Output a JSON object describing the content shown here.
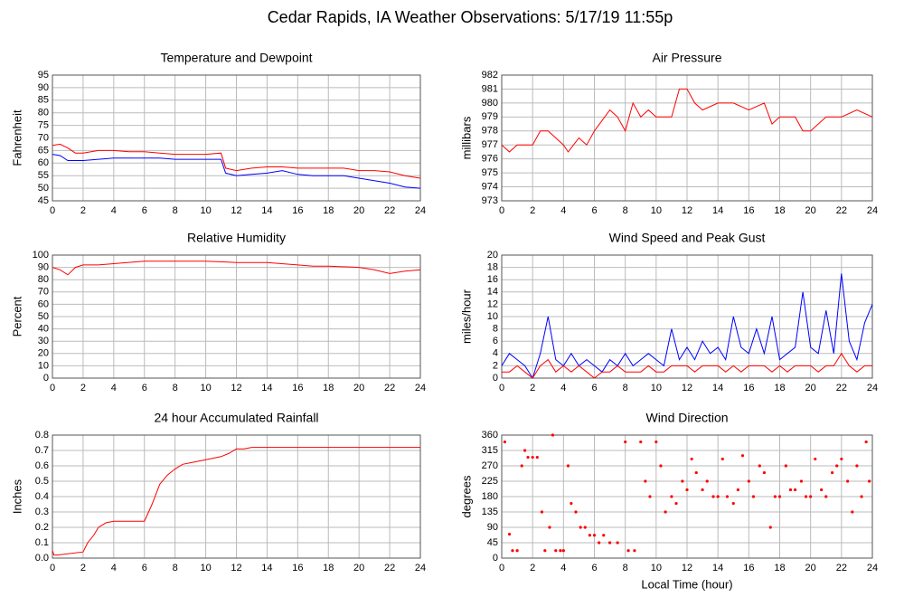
{
  "title": "Cedar Rapids, IA Weather Observations: 5/17/19 11:55p",
  "chart_data": [
    {
      "type": "line",
      "title": "Temperature and Dewpoint",
      "ylabel": "Fahrenheit",
      "x": [
        0,
        0.5,
        1,
        1.5,
        2,
        3,
        4,
        5,
        6,
        7,
        8,
        9,
        10,
        11,
        11.3,
        12,
        13,
        14,
        15,
        16,
        17,
        18,
        19,
        20,
        21,
        22,
        23,
        24
      ],
      "series": [
        {
          "color": "#ff0000",
          "values": [
            67,
            67.5,
            66,
            64,
            64,
            65,
            65,
            64.5,
            64.5,
            64,
            63.5,
            63.5,
            63.5,
            64,
            58,
            57,
            58,
            58.5,
            58.5,
            58,
            58,
            58,
            58,
            57,
            57,
            56.5,
            55,
            54
          ]
        },
        {
          "color": "#0000ff",
          "values": [
            63.5,
            63,
            61,
            61,
            61,
            61.5,
            62,
            62,
            62,
            62,
            61.5,
            61.5,
            61.5,
            61.5,
            56,
            55,
            55.5,
            56,
            57,
            55.5,
            55,
            55,
            55,
            54,
            53,
            52,
            50.5,
            50
          ]
        }
      ],
      "xlim": [
        0,
        24
      ],
      "xticks": [
        0,
        2,
        4,
        6,
        8,
        10,
        12,
        14,
        16,
        18,
        20,
        22,
        24
      ],
      "ylim": [
        45,
        95
      ],
      "yticks": [
        45,
        50,
        55,
        60,
        65,
        70,
        75,
        80,
        85,
        90,
        95
      ],
      "grid": true
    },
    {
      "type": "line",
      "title": "Air Pressure",
      "ylabel": "millibars",
      "x": [
        0,
        0.5,
        1,
        2,
        2.5,
        3,
        4,
        4.3,
        5,
        5.5,
        6,
        7,
        7.5,
        8,
        8.5,
        9,
        9.5,
        10,
        11,
        11.5,
        12,
        12.5,
        13,
        14,
        15,
        16,
        17,
        17.5,
        18,
        19,
        19.5,
        20,
        21,
        22,
        23,
        24
      ],
      "series": [
        {
          "color": "#ff0000",
          "values": [
            977,
            976.5,
            977,
            977,
            978,
            978,
            977,
            976.5,
            977.5,
            977,
            978,
            979.5,
            979,
            978,
            980,
            979,
            979.5,
            979,
            979,
            981,
            981,
            980,
            979.5,
            980,
            980,
            979.5,
            980,
            978.5,
            979,
            979,
            978,
            978,
            979,
            979,
            979.5,
            979
          ]
        }
      ],
      "xlim": [
        0,
        24
      ],
      "xticks": [
        0,
        2,
        4,
        6,
        8,
        10,
        12,
        14,
        16,
        18,
        20,
        22,
        24
      ],
      "ylim": [
        973,
        982
      ],
      "yticks": [
        973,
        974,
        975,
        976,
        977,
        978,
        979,
        980,
        981,
        982
      ],
      "grid": true
    },
    {
      "type": "line",
      "title": "Relative Humidity",
      "ylabel": "Percent",
      "x": [
        0,
        0.5,
        1,
        1.5,
        2,
        3,
        4,
        6,
        8,
        10,
        12,
        14,
        16,
        17,
        18,
        20,
        21,
        22,
        23,
        24
      ],
      "series": [
        {
          "color": "#ff0000",
          "values": [
            90,
            88,
            84,
            90,
            92,
            92,
            93,
            95,
            95,
            95,
            94,
            94,
            92,
            91,
            91,
            90,
            88,
            85,
            87,
            88
          ]
        }
      ],
      "xlim": [
        0,
        24
      ],
      "xticks": [
        0,
        2,
        4,
        6,
        8,
        10,
        12,
        14,
        16,
        18,
        20,
        22,
        24
      ],
      "ylim": [
        0,
        100
      ],
      "yticks": [
        0,
        10,
        20,
        30,
        40,
        50,
        60,
        70,
        80,
        90,
        100
      ],
      "grid": true
    },
    {
      "type": "line",
      "title": "Wind Speed and Peak Gust",
      "ylabel": "miles/hour",
      "x": [
        0,
        0.5,
        1,
        1.5,
        2,
        2.5,
        3,
        3.5,
        4,
        4.5,
        5,
        5.5,
        6,
        6.5,
        7,
        7.5,
        8,
        8.5,
        9,
        9.5,
        10,
        10.5,
        11,
        11.5,
        12,
        12.5,
        13,
        13.5,
        14,
        14.5,
        15,
        15.5,
        16,
        16.5,
        17,
        17.5,
        18,
        18.5,
        19,
        19.5,
        20,
        20.5,
        21,
        21.5,
        22,
        22.5,
        23,
        23.5,
        24
      ],
      "series": [
        {
          "color": "#0000ff",
          "values": [
            2,
            4,
            3,
            2,
            0,
            4,
            10,
            3,
            2,
            4,
            2,
            3,
            2,
            1,
            3,
            2,
            4,
            2,
            3,
            4,
            3,
            2,
            8,
            3,
            5,
            3,
            6,
            4,
            5,
            3,
            10,
            5,
            4,
            8,
            4,
            10,
            3,
            4,
            5,
            14,
            5,
            4,
            11,
            4,
            17,
            6,
            3,
            9,
            12
          ]
        },
        {
          "color": "#ff0000",
          "values": [
            1,
            1,
            2,
            1,
            0,
            2,
            3,
            1,
            2,
            1,
            2,
            1,
            0,
            1,
            1,
            2,
            1,
            1,
            1,
            2,
            1,
            1,
            2,
            2,
            2,
            1,
            2,
            2,
            2,
            1,
            2,
            1,
            2,
            2,
            2,
            1,
            2,
            1,
            2,
            2,
            2,
            1,
            2,
            2,
            4,
            2,
            1,
            2,
            2
          ]
        }
      ],
      "xlim": [
        0,
        24
      ],
      "xticks": [
        0,
        2,
        4,
        6,
        8,
        10,
        12,
        14,
        16,
        18,
        20,
        22,
        24
      ],
      "ylim": [
        0,
        20
      ],
      "yticks": [
        0,
        2,
        4,
        6,
        8,
        10,
        12,
        14,
        16,
        18,
        20
      ],
      "grid": true
    },
    {
      "type": "line",
      "title": "24 hour Accumulated Rainfall",
      "ylabel": "Inches",
      "x": [
        0,
        0.1,
        0.3,
        2,
        2.3,
        2.7,
        3,
        3.5,
        4,
        5,
        6,
        6.5,
        7,
        7.5,
        8,
        8.5,
        9,
        10,
        11,
        11.5,
        12,
        12.5,
        13,
        24
      ],
      "series": [
        {
          "color": "#ff0000",
          "values": [
            0.05,
            0.02,
            0.02,
            0.04,
            0.1,
            0.15,
            0.2,
            0.23,
            0.24,
            0.24,
            0.24,
            0.35,
            0.48,
            0.54,
            0.58,
            0.61,
            0.62,
            0.64,
            0.66,
            0.68,
            0.71,
            0.71,
            0.72,
            0.72
          ]
        }
      ],
      "xlim": [
        0,
        24
      ],
      "xticks": [
        0,
        2,
        4,
        6,
        8,
        10,
        12,
        14,
        16,
        18,
        20,
        22,
        24
      ],
      "ylim": [
        0,
        0.8
      ],
      "yticks": [
        {
          "value": 0,
          "label": "0.0"
        },
        0.1,
        0.2,
        0.3,
        0.4,
        0.5,
        0.6,
        0.7,
        0.8
      ],
      "grid": true
    },
    {
      "type": "scatter",
      "title": "Wind Direction",
      "ylabel": "degrees",
      "xlabel": "Local Time (hour)",
      "x": [
        0.2,
        0.5,
        0.7,
        1,
        1.3,
        1.5,
        1.7,
        2,
        2.3,
        2.6,
        2.8,
        3.1,
        3.3,
        3.5,
        3.8,
        4,
        4.3,
        4.5,
        4.8,
        5.1,
        5.4,
        5.7,
        6,
        6.3,
        6.6,
        7,
        7.5,
        8,
        8.2,
        8.6,
        9,
        9.3,
        9.6,
        10,
        10.3,
        10.6,
        11,
        11.3,
        11.7,
        12,
        12.3,
        12.6,
        13,
        13.3,
        13.7,
        14,
        14.3,
        14.6,
        15,
        15.3,
        15.6,
        16,
        16.3,
        16.7,
        17,
        17.4,
        17.7,
        18,
        18.4,
        18.7,
        19,
        19.4,
        19.7,
        20,
        20.3,
        20.7,
        21,
        21.4,
        21.7,
        22,
        22.4,
        22.7,
        23,
        23.3,
        23.6,
        23.8
      ],
      "series": [
        {
          "color": "#ff0000",
          "values": [
            340,
            70,
            22,
            22,
            270,
            315,
            295,
            295,
            295,
            135,
            22,
            90,
            360,
            22,
            22,
            22,
            270,
            160,
            135,
            90,
            90,
            67,
            67,
            45,
            67,
            45,
            45,
            340,
            22,
            22,
            340,
            225,
            180,
            340,
            270,
            135,
            180,
            160,
            225,
            200,
            290,
            250,
            200,
            225,
            180,
            180,
            290,
            180,
            160,
            200,
            300,
            225,
            180,
            270,
            250,
            90,
            180,
            180,
            270,
            200,
            200,
            225,
            180,
            180,
            290,
            200,
            180,
            250,
            270,
            290,
            225,
            135,
            270,
            180,
            340,
            225
          ]
        }
      ],
      "xlim": [
        0,
        24
      ],
      "xticks": [
        0,
        2,
        4,
        6,
        8,
        10,
        12,
        14,
        16,
        18,
        20,
        22,
        24
      ],
      "ylim": [
        0,
        360
      ],
      "yticks": [
        0,
        45,
        90,
        135,
        180,
        225,
        270,
        315,
        360
      ],
      "grid": true
    }
  ]
}
